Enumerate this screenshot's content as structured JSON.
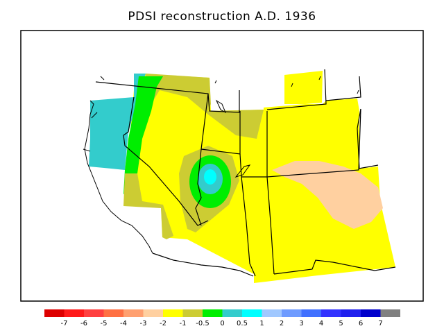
{
  "title": "PDSI reconstruction A.D. 1936",
  "legend": {
    "colors": [
      "#dd0000",
      "#ff1a1a",
      "#ff4040",
      "#ff7043",
      "#ffa070",
      "#ffd0a0",
      "#ffff00",
      "#cccc33",
      "#00ee00",
      "#33cccc",
      "#00ffff",
      "#a0c8ff",
      "#6e9bff",
      "#4070ff",
      "#3333ff",
      "#2020ee",
      "#0000cc",
      "#808080"
    ],
    "labels": [
      "-7",
      "-6",
      "-5",
      "-4",
      "-3",
      "-2",
      "-1",
      "-0.5",
      "0",
      "0.5",
      "1",
      "2",
      "3",
      "4",
      "5",
      "6",
      "7"
    ]
  },
  "colors": {
    "wet_light": "#33cccc",
    "wet_medium": "#00ffff",
    "near_normal_wet": "#00ee00",
    "near_normal_dry": "#cccc33",
    "mild_drought": "#ffff00",
    "moderate_drought": "#ffd0a0"
  }
}
